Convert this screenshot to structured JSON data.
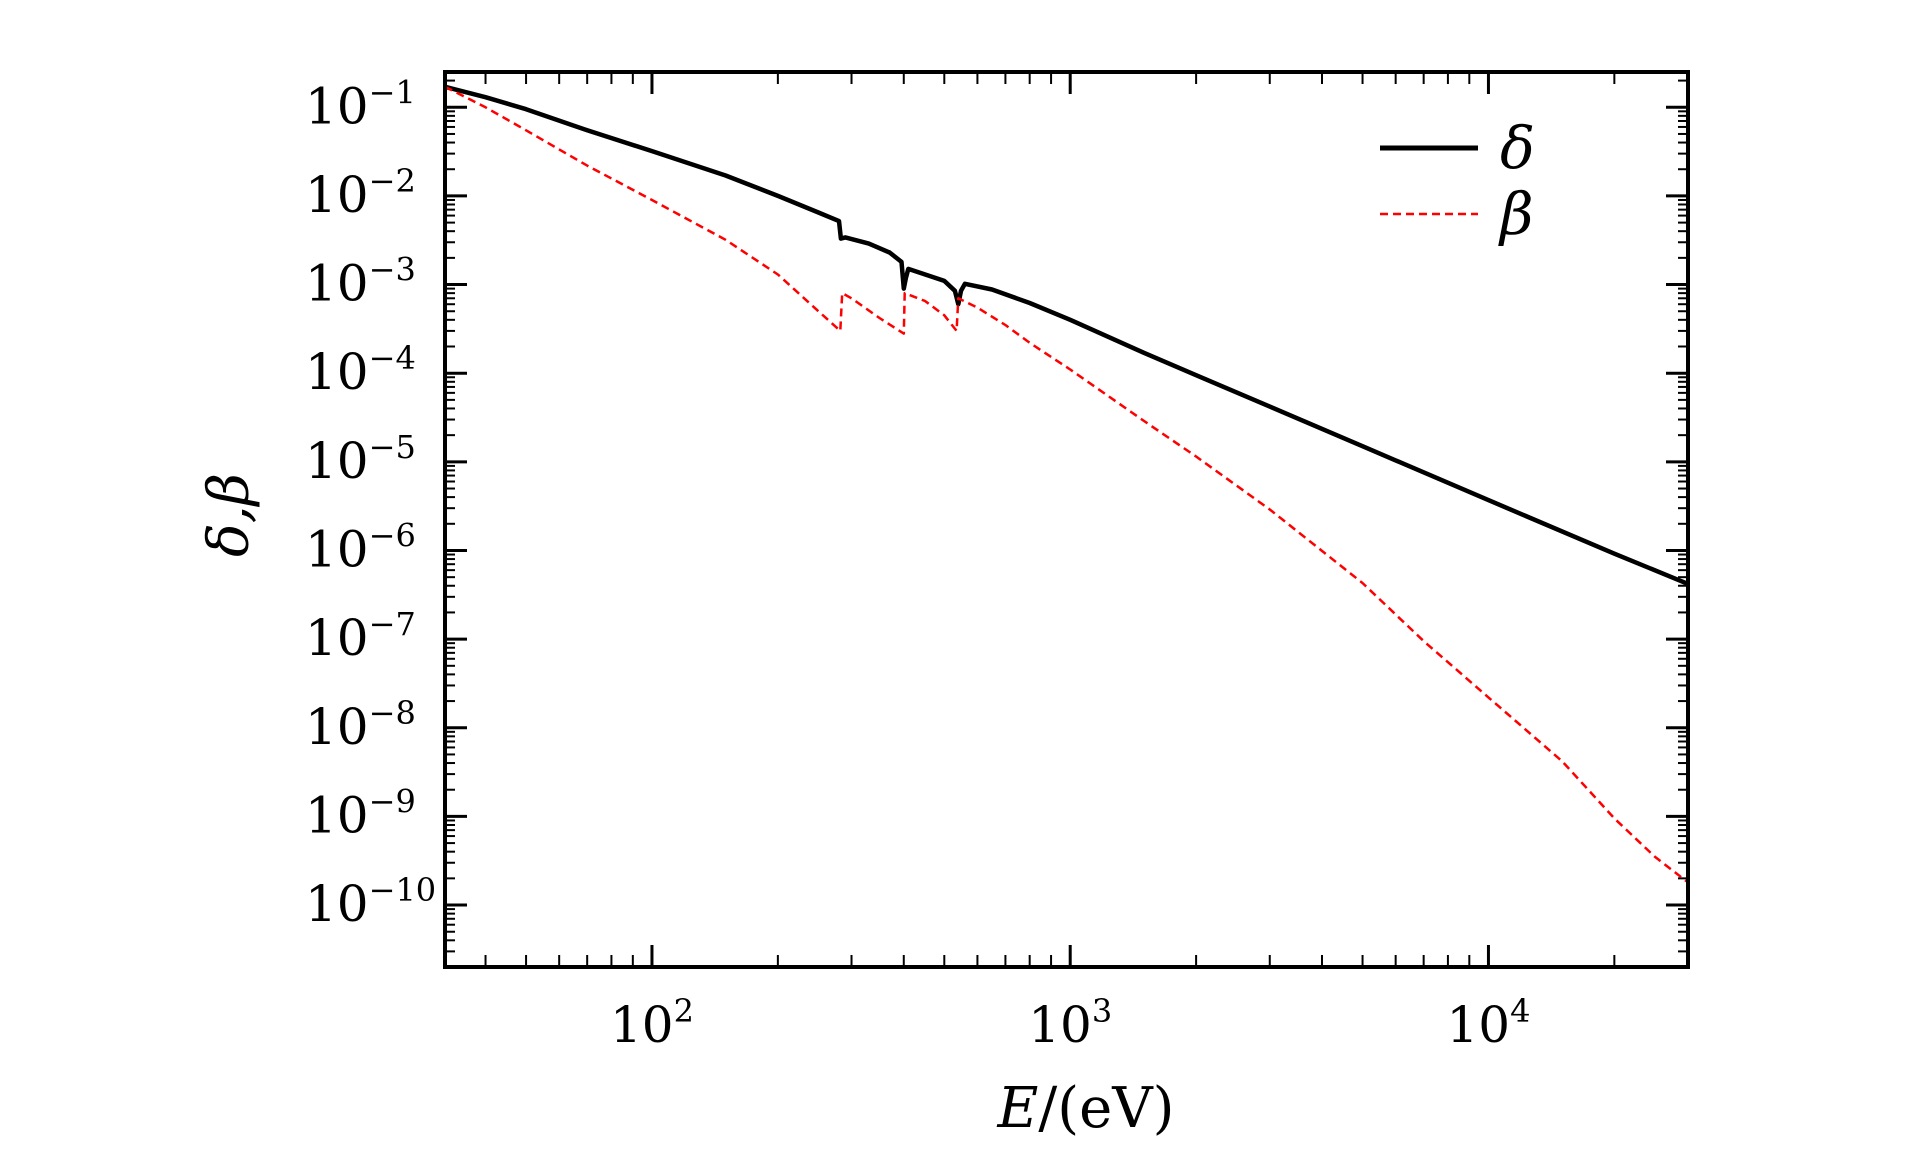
{
  "chart_data": {
    "type": "line",
    "xscale": "log",
    "yscale": "log",
    "xlim": [
      32,
      30000
    ],
    "ylim": [
      2e-11,
      0.25
    ],
    "xlabel": {
      "italic": "E",
      "rest": "/(eV)"
    },
    "ylabel": "δ,β",
    "x_ticks": [
      {
        "value": 100,
        "base": "10",
        "exp": "2"
      },
      {
        "value": 1000,
        "base": "10",
        "exp": "3"
      },
      {
        "value": 10000,
        "base": "10",
        "exp": "4"
      }
    ],
    "y_ticks": [
      {
        "value": 0.1,
        "base": "10",
        "exp": "−1"
      },
      {
        "value": 0.01,
        "base": "10",
        "exp": "−2"
      },
      {
        "value": 0.001,
        "base": "10",
        "exp": "−3"
      },
      {
        "value": 0.0001,
        "base": "10",
        "exp": "−4"
      },
      {
        "value": 1e-05,
        "base": "10",
        "exp": "−5"
      },
      {
        "value": 1e-06,
        "base": "10",
        "exp": "−6"
      },
      {
        "value": 1e-07,
        "base": "10",
        "exp": "−7"
      },
      {
        "value": 1e-08,
        "base": "10",
        "exp": "−8"
      },
      {
        "value": 1e-09,
        "base": "10",
        "exp": "−9"
      },
      {
        "value": 1e-10,
        "base": "10",
        "exp": "−10"
      }
    ],
    "legend_position": "top-right",
    "series": [
      {
        "name": "δ",
        "color": "#000000",
        "dash": "solid",
        "points": [
          [
            32,
            0.17
          ],
          [
            40,
            0.13
          ],
          [
            50,
            0.095
          ],
          [
            70,
            0.055
          ],
          [
            100,
            0.032
          ],
          [
            150,
            0.017
          ],
          [
            200,
            0.01
          ],
          [
            250,
            0.0065
          ],
          [
            280,
            0.0052
          ],
          [
            283,
            0.0033
          ],
          [
            290,
            0.0034
          ],
          [
            330,
            0.0029
          ],
          [
            370,
            0.0023
          ],
          [
            395,
            0.0018
          ],
          [
            400,
            0.0009
          ],
          [
            405,
            0.0012
          ],
          [
            410,
            0.0015
          ],
          [
            450,
            0.0013
          ],
          [
            500,
            0.0011
          ],
          [
            530,
            0.00085
          ],
          [
            540,
            0.0006
          ],
          [
            548,
            0.00085
          ],
          [
            560,
            0.00102
          ],
          [
            650,
            0.00088
          ],
          [
            800,
            0.00062
          ],
          [
            1000,
            0.0004
          ],
          [
            1500,
            0.00017
          ],
          [
            2000,
            9.5e-05
          ],
          [
            3000,
            4.2e-05
          ],
          [
            5000,
            1.5e-05
          ],
          [
            10000,
            3.7e-06
          ],
          [
            20000,
            9.2e-07
          ],
          [
            30000,
            4.2e-07
          ]
        ]
      },
      {
        "name": "β",
        "color": "#ff0000",
        "dash": "dashed",
        "points": [
          [
            32,
            0.17
          ],
          [
            40,
            0.1
          ],
          [
            50,
            0.055
          ],
          [
            70,
            0.022
          ],
          [
            100,
            0.009
          ],
          [
            150,
            0.0032
          ],
          [
            200,
            0.0013
          ],
          [
            250,
            0.0005
          ],
          [
            282,
            0.0003
          ],
          [
            285,
            0.0008
          ],
          [
            300,
            0.0007
          ],
          [
            350,
            0.00042
          ],
          [
            400,
            0.00028
          ],
          [
            402,
            0.0008
          ],
          [
            450,
            0.00065
          ],
          [
            500,
            0.00045
          ],
          [
            535,
            0.0003
          ],
          [
            540,
            0.0007
          ],
          [
            600,
            0.00055
          ],
          [
            700,
            0.00035
          ],
          [
            800,
            0.00022
          ],
          [
            1000,
            0.00011
          ],
          [
            1500,
            2.9e-05
          ],
          [
            2000,
            1.15e-05
          ],
          [
            3000,
            2.9e-06
          ],
          [
            5000,
            4.3e-07
          ],
          [
            7000,
            9.5e-08
          ],
          [
            10000,
            2.2e-08
          ],
          [
            15000,
            4.2e-09
          ],
          [
            20000,
            9.5e-10
          ],
          [
            25000,
            3.5e-10
          ],
          [
            30000,
            1.8e-10
          ]
        ]
      }
    ]
  }
}
